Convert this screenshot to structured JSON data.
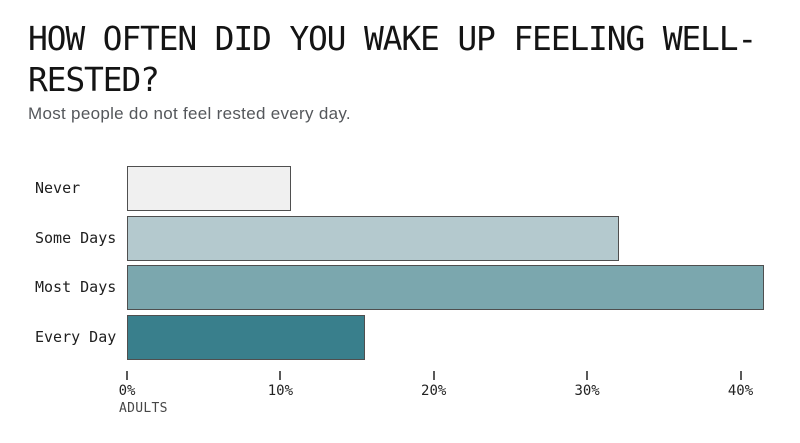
{
  "header": {
    "title_lines": [
      "HOW OFTEN DID YOU WAKE UP FEELING WELL-",
      "RESTED?"
    ],
    "subtitle": "Most people do not feel rested every day."
  },
  "chart_data": {
    "type": "bar",
    "orientation": "horizontal",
    "title": "HOW OFTEN DID YOU WAKE UP FEELING WELL-RESTED?",
    "subtitle": "Most people do not feel rested every day.",
    "categories": [
      "Never",
      "Some Days",
      "Most Days",
      "Every Day"
    ],
    "values": [
      10.7,
      32.1,
      41.5,
      15.5
    ],
    "unit": "percent",
    "bar_colors": [
      "#f0f0f0",
      "#b4c9ce",
      "#7ba7ae",
      "#397f8c"
    ],
    "bar_border_color": "#4f4f4f",
    "xlabel": "ADULTS",
    "xlim": [
      0,
      41.6
    ],
    "x_ticks": [
      {
        "value": 0,
        "label": "0%"
      },
      {
        "value": 10,
        "label": "10%"
      },
      {
        "value": 20,
        "label": "20%"
      },
      {
        "value": 30,
        "label": "30%"
      },
      {
        "value": 40,
        "label": "40%"
      }
    ],
    "grid": false,
    "legend": false
  }
}
